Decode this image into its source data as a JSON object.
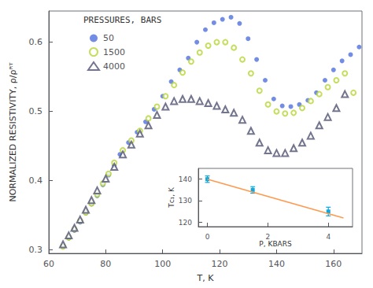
{
  "chart_data": [
    {
      "type": "scatter",
      "xlabel": "T, K",
      "ylabel": "NORMALIZED RESISTIVITY, ρ/ρᴿᵀ",
      "legend_title": "PRESSURES, BARS",
      "legend": "upper left",
      "grid": false,
      "xlim": [
        60,
        170
      ],
      "ylim": [
        0.295,
        0.645
      ],
      "xticks": [
        60,
        80,
        100,
        120,
        140,
        160
      ],
      "yticks": [
        0.3,
        0.4,
        0.5,
        0.6
      ],
      "series": [
        {
          "name": "50",
          "marker": "filled circle",
          "x": [
            65,
            67,
            69,
            71,
            73,
            75,
            77,
            79,
            81,
            83,
            85,
            88,
            91,
            94,
            97,
            100,
            103,
            106,
            109,
            112,
            115,
            118,
            121,
            124,
            127,
            130,
            133,
            136,
            139,
            142,
            145,
            148,
            151,
            154,
            157,
            160,
            163,
            166,
            169
          ],
          "values": [
            0.305,
            0.317,
            0.328,
            0.34,
            0.353,
            0.366,
            0.378,
            0.394,
            0.408,
            0.422,
            0.438,
            0.455,
            0.47,
            0.485,
            0.503,
            0.522,
            0.543,
            0.56,
            0.577,
            0.6,
            0.618,
            0.628,
            0.633,
            0.636,
            0.627,
            0.605,
            0.575,
            0.545,
            0.518,
            0.508,
            0.507,
            0.51,
            0.516,
            0.527,
            0.545,
            0.56,
            0.573,
            0.582,
            0.593
          ]
        },
        {
          "name": "1500",
          "marker": "open circle",
          "x": [
            65,
            67,
            69,
            71,
            73,
            75,
            77,
            79,
            81,
            83,
            86,
            89,
            92,
            95,
            98,
            101,
            104,
            107,
            110,
            113,
            116,
            119,
            122,
            125,
            128,
            131,
            134,
            137,
            140,
            143,
            146,
            149,
            152,
            155,
            158,
            161,
            164,
            167
          ],
          "values": [
            0.305,
            0.318,
            0.33,
            0.342,
            0.354,
            0.367,
            0.38,
            0.396,
            0.41,
            0.426,
            0.444,
            0.458,
            0.472,
            0.49,
            0.507,
            0.522,
            0.538,
            0.556,
            0.572,
            0.585,
            0.595,
            0.6,
            0.6,
            0.592,
            0.575,
            0.555,
            0.53,
            0.51,
            0.5,
            0.497,
            0.498,
            0.505,
            0.515,
            0.525,
            0.535,
            0.545,
            0.555,
            0.527
          ]
        },
        {
          "name": "4000",
          "marker": "open triangle",
          "x": [
            65,
            67,
            69,
            71,
            73,
            75,
            77,
            80,
            83,
            86,
            89,
            92,
            95,
            98,
            101,
            104,
            107,
            110,
            113,
            116,
            119,
            122,
            125,
            128,
            131,
            134,
            137,
            140,
            143,
            146,
            149,
            152,
            155,
            158,
            161,
            164
          ],
          "values": [
            0.308,
            0.321,
            0.332,
            0.344,
            0.358,
            0.372,
            0.386,
            0.403,
            0.42,
            0.438,
            0.452,
            0.468,
            0.48,
            0.495,
            0.507,
            0.515,
            0.518,
            0.518,
            0.515,
            0.512,
            0.508,
            0.503,
            0.498,
            0.488,
            0.472,
            0.455,
            0.444,
            0.44,
            0.44,
            0.447,
            0.455,
            0.465,
            0.48,
            0.492,
            0.505,
            0.525
          ]
        }
      ]
    },
    {
      "type": "line",
      "xlabel": "P, KBARS",
      "ylabel": "Tᴄ₁, K",
      "grid": false,
      "xlim": [
        -0.3,
        4.8
      ],
      "ylim": [
        118,
        145
      ],
      "xticks": [
        0,
        2,
        4
      ],
      "yticks": [
        120,
        130,
        140
      ],
      "series": [
        {
          "type": "line",
          "line_style": "solid",
          "x": [
            0,
            4.5
          ],
          "values": [
            140,
            122
          ]
        },
        {
          "type": "scatter",
          "marker": "square",
          "x": [
            0,
            1.5,
            4.0
          ],
          "values": [
            140,
            135,
            125
          ],
          "errors": [
            1.5,
            1.5,
            2.0
          ]
        }
      ]
    }
  ]
}
